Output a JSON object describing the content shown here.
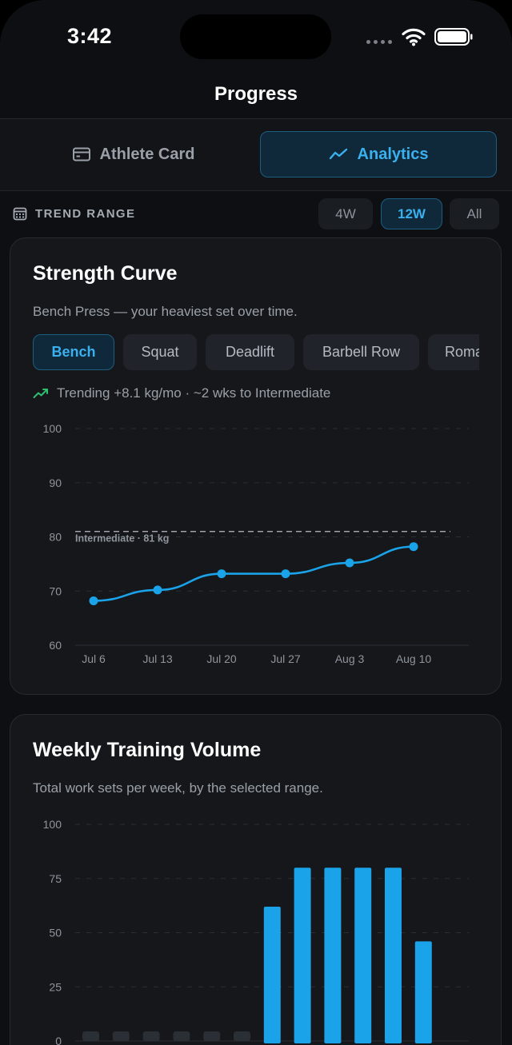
{
  "status_bar": {
    "time": "3:42"
  },
  "nav": {
    "title": "Progress"
  },
  "segment": {
    "athlete_card": {
      "label": "Athlete Card",
      "icon": "id-card-icon"
    },
    "analytics": {
      "label": "Analytics",
      "icon": "trend-line-icon",
      "selected": true
    }
  },
  "trend_range": {
    "label": "TREND RANGE",
    "icon": "calendar-icon",
    "options": [
      "4W",
      "12W",
      "All"
    ],
    "selected": "12W"
  },
  "strength_card": {
    "title": "Strength Curve",
    "subtitle": "Bench Press — your heaviest set over time.",
    "lifts": [
      "Bench",
      "Squat",
      "Deadlift",
      "Barbell Row",
      "Roma"
    ],
    "selected_lift": "Bench",
    "trend_text": "Trending +8.1 kg/mo · ~2 wks to Intermediate",
    "colors": {
      "accent": "#1aa3e8",
      "trend_up": "#2fbf71"
    }
  },
  "volume_card": {
    "title": "Weekly Training Volume",
    "subtitle": "Total work sets per week, by the selected range."
  },
  "chart_data": [
    {
      "type": "line",
      "x": [
        "Jul 6",
        "Jul 13",
        "Jul 20",
        "Jul 27",
        "Aug 3",
        "Aug 10"
      ],
      "series": [
        {
          "values": [
            68.2,
            70.2,
            73.2,
            73.2,
            75.2,
            78.2
          ]
        }
      ],
      "ylim": [
        60,
        100
      ],
      "yticks": [
        100,
        90,
        80,
        70,
        60
      ],
      "reference_line": {
        "value": 81,
        "label": "Intermediate · 81 kg"
      },
      "grid": true
    },
    {
      "type": "bar",
      "categories": [
        "",
        "",
        "",
        "",
        "",
        "",
        "",
        "",
        "",
        "",
        "",
        ""
      ],
      "values": [
        0,
        0,
        0,
        0,
        0,
        0,
        62,
        80,
        80,
        80,
        80,
        46
      ],
      "ylim": [
        0,
        100
      ],
      "yticks": [
        100,
        75,
        50,
        25,
        0
      ],
      "grid": true
    }
  ]
}
